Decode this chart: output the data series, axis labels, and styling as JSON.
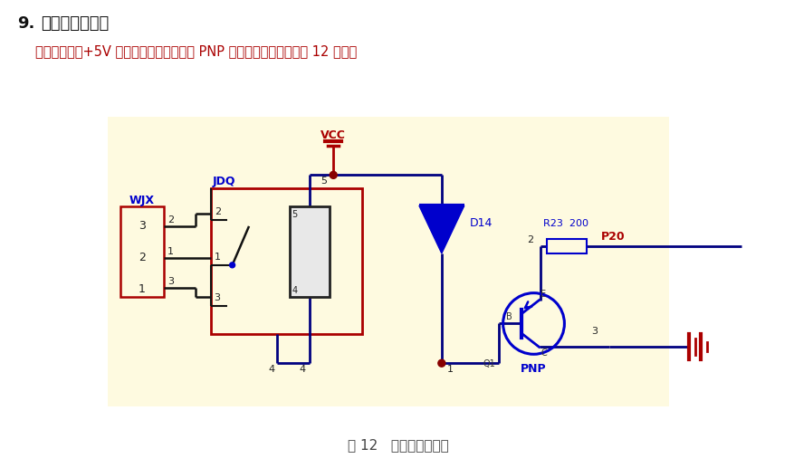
{
  "title_num": "9.",
  "title_text": "继电器模块电路",
  "subtitle": "该实验板上的+5V 单路继电器也是由一个 PNP 三极管驱动，电路如图 12 所示。",
  "caption": "图 12   继电器模块电路",
  "bg_color": "#FFFFFF",
  "circuit_bg": "#FEFAE0",
  "wire_color": "#000080",
  "red_color": "#AA0000",
  "blue_color": "#0000CC",
  "dark_color": "#111111",
  "node_color": "#880000"
}
